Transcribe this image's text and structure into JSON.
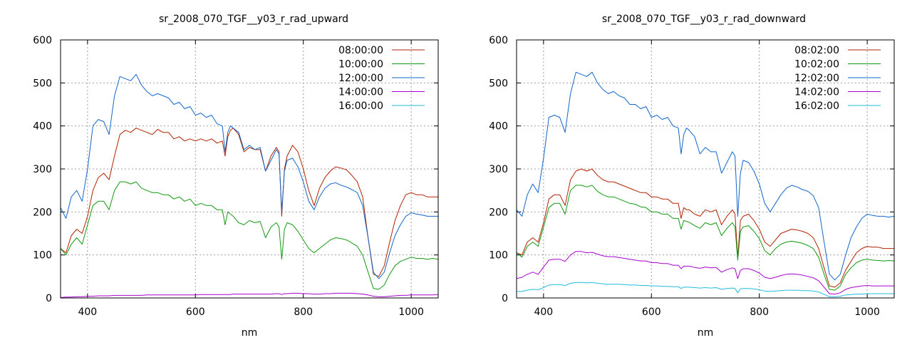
{
  "chart_data": [
    {
      "type": "line",
      "title": "sr_2008_070_TGF__y03_r_rad_upward",
      "xlabel": "nm",
      "ylabel": "",
      "xlim": [
        350,
        1050
      ],
      "ylim": [
        0,
        600
      ],
      "xticks": [
        400,
        600,
        800,
        1000
      ],
      "yticks": [
        0,
        100,
        200,
        300,
        400,
        500,
        600
      ],
      "grid": true,
      "legend": "top-right",
      "x": [
        350,
        360,
        370,
        380,
        390,
        400,
        410,
        420,
        430,
        440,
        450,
        460,
        470,
        480,
        490,
        500,
        510,
        520,
        530,
        540,
        550,
        560,
        570,
        580,
        590,
        600,
        610,
        620,
        630,
        640,
        650,
        655,
        660,
        665,
        670,
        680,
        690,
        700,
        710,
        720,
        730,
        740,
        750,
        755,
        760,
        765,
        770,
        780,
        790,
        800,
        810,
        820,
        830,
        840,
        850,
        860,
        870,
        880,
        890,
        900,
        910,
        920,
        930,
        940,
        950,
        960,
        970,
        980,
        990,
        1000,
        1010,
        1020,
        1030,
        1040,
        1050
      ],
      "series": [
        {
          "name": "08:00:00",
          "color": "#b22200",
          "values": [
            115,
            105,
            145,
            160,
            150,
            190,
            250,
            280,
            290,
            275,
            330,
            380,
            390,
            385,
            395,
            390,
            385,
            380,
            392,
            385,
            385,
            370,
            375,
            365,
            370,
            365,
            370,
            365,
            370,
            360,
            365,
            330,
            375,
            390,
            395,
            380,
            340,
            350,
            345,
            345,
            295,
            330,
            350,
            340,
            190,
            300,
            330,
            355,
            340,
            300,
            250,
            215,
            255,
            280,
            295,
            305,
            302,
            298,
            285,
            270,
            235,
            140,
            55,
            50,
            75,
            130,
            180,
            215,
            240,
            245,
            240,
            240,
            235,
            235,
            235
          ]
        },
        {
          "name": "10:00:00",
          "color": "#119911",
          "values": [
            115,
            100,
            125,
            140,
            125,
            170,
            215,
            225,
            225,
            205,
            250,
            270,
            270,
            265,
            270,
            255,
            250,
            245,
            245,
            240,
            240,
            230,
            235,
            225,
            230,
            215,
            220,
            215,
            215,
            205,
            205,
            170,
            200,
            195,
            190,
            175,
            170,
            180,
            175,
            178,
            140,
            165,
            175,
            165,
            90,
            160,
            175,
            170,
            155,
            135,
            115,
            105,
            115,
            125,
            135,
            140,
            138,
            135,
            128,
            120,
            100,
            60,
            22,
            20,
            30,
            55,
            75,
            85,
            90,
            95,
            92,
            92,
            90,
            92,
            90
          ]
        },
        {
          "name": "12:00:00",
          "color": "#1166cc",
          "values": [
            210,
            185,
            235,
            250,
            225,
            300,
            400,
            415,
            410,
            380,
            470,
            515,
            510,
            505,
            520,
            495,
            480,
            470,
            475,
            470,
            465,
            450,
            455,
            440,
            445,
            425,
            430,
            420,
            425,
            405,
            400,
            340,
            385,
            400,
            395,
            385,
            345,
            355,
            345,
            350,
            295,
            320,
            345,
            335,
            200,
            295,
            320,
            325,
            305,
            270,
            225,
            205,
            235,
            255,
            265,
            268,
            262,
            258,
            252,
            245,
            215,
            140,
            60,
            45,
            60,
            105,
            145,
            170,
            190,
            198,
            195,
            193,
            190,
            190,
            190
          ]
        },
        {
          "name": "14:00:00",
          "color": "#aa00cc",
          "values": [
            1,
            2,
            2,
            3,
            3,
            4,
            4,
            5,
            5,
            5,
            6,
            6,
            6,
            6,
            6,
            6,
            7,
            7,
            7,
            7,
            7,
            7,
            7,
            7,
            7,
            7,
            8,
            8,
            8,
            8,
            8,
            8,
            8,
            8,
            9,
            9,
            9,
            9,
            9,
            9,
            9,
            9,
            10,
            10,
            8,
            10,
            10,
            11,
            11,
            10,
            10,
            9,
            9,
            10,
            10,
            11,
            11,
            11,
            11,
            10,
            9,
            7,
            4,
            3,
            3,
            4,
            5,
            6,
            6,
            7,
            7,
            7,
            7,
            7,
            8
          ]
        },
        {
          "name": "16:00:00",
          "color": "#22bbdd",
          "values": [
            0,
            0,
            0,
            0,
            0,
            0,
            0,
            0,
            0,
            0,
            0,
            0,
            0,
            0,
            0,
            0,
            0,
            0,
            0,
            0,
            0,
            0,
            0,
            0,
            0,
            0,
            0,
            0,
            0,
            0,
            0,
            0,
            0,
            0,
            0,
            0,
            0,
            0,
            0,
            0,
            0,
            0,
            0,
            0,
            0,
            0,
            0,
            0,
            0,
            0,
            0,
            0,
            0,
            0,
            0,
            0,
            0,
            0,
            0,
            0,
            0,
            0,
            0,
            0,
            0,
            0,
            0,
            0,
            0,
            0,
            0,
            0,
            0,
            0,
            0
          ]
        }
      ]
    },
    {
      "type": "line",
      "title": "sr_2008_070_TGF__y03_r_rad_downward",
      "xlabel": "nm",
      "ylabel": "",
      "xlim": [
        350,
        1050
      ],
      "ylim": [
        0,
        600
      ],
      "xticks": [
        400,
        600,
        800,
        1000
      ],
      "yticks": [
        0,
        100,
        200,
        300,
        400,
        500,
        600
      ],
      "grid": true,
      "legend": "top-right",
      "x": [
        350,
        360,
        370,
        380,
        390,
        400,
        410,
        420,
        430,
        440,
        450,
        460,
        470,
        480,
        490,
        500,
        510,
        520,
        530,
        540,
        550,
        560,
        570,
        580,
        590,
        600,
        610,
        620,
        630,
        640,
        650,
        655,
        660,
        665,
        670,
        680,
        690,
        700,
        710,
        720,
        730,
        740,
        750,
        755,
        760,
        765,
        770,
        780,
        790,
        800,
        810,
        820,
        830,
        840,
        850,
        860,
        870,
        880,
        890,
        900,
        910,
        920,
        930,
        940,
        950,
        960,
        970,
        980,
        990,
        1000,
        1010,
        1020,
        1030,
        1040,
        1050
      ],
      "series": [
        {
          "name": "08:02:00",
          "color": "#b22200",
          "values": [
            105,
            100,
            130,
            140,
            130,
            175,
            230,
            240,
            240,
            215,
            275,
            295,
            300,
            295,
            300,
            285,
            275,
            270,
            270,
            265,
            260,
            255,
            250,
            245,
            245,
            235,
            235,
            230,
            230,
            220,
            220,
            185,
            210,
            205,
            205,
            195,
            190,
            205,
            200,
            205,
            170,
            190,
            205,
            195,
            95,
            180,
            190,
            195,
            180,
            160,
            130,
            120,
            135,
            150,
            155,
            160,
            158,
            155,
            150,
            140,
            115,
            70,
            28,
            25,
            35,
            65,
            85,
            105,
            115,
            120,
            118,
            118,
            115,
            115,
            115
          ]
        },
        {
          "name": "10:02:00",
          "color": "#119911",
          "values": [
            105,
            95,
            120,
            130,
            120,
            165,
            210,
            220,
            220,
            195,
            250,
            262,
            262,
            258,
            262,
            248,
            240,
            235,
            235,
            230,
            225,
            220,
            218,
            212,
            210,
            200,
            200,
            195,
            195,
            185,
            185,
            160,
            180,
            178,
            176,
            168,
            162,
            175,
            170,
            175,
            145,
            162,
            175,
            165,
            88,
            155,
            165,
            168,
            155,
            138,
            110,
            100,
            115,
            125,
            130,
            132,
            130,
            127,
            122,
            115,
            95,
            55,
            20,
            18,
            28,
            55,
            70,
            82,
            88,
            90,
            88,
            87,
            86,
            87,
            86
          ]
        },
        {
          "name": "12:02:00",
          "color": "#1166cc",
          "values": [
            205,
            190,
            240,
            265,
            245,
            325,
            420,
            425,
            420,
            385,
            475,
            525,
            520,
            515,
            525,
            500,
            485,
            475,
            480,
            470,
            465,
            450,
            450,
            440,
            445,
            420,
            425,
            415,
            420,
            400,
            395,
            335,
            380,
            395,
            390,
            375,
            335,
            350,
            340,
            340,
            290,
            315,
            340,
            330,
            190,
            290,
            320,
            315,
            295,
            265,
            220,
            200,
            220,
            240,
            255,
            262,
            258,
            252,
            248,
            238,
            210,
            130,
            55,
            42,
            55,
            100,
            140,
            165,
            185,
            195,
            192,
            190,
            190,
            188,
            190
          ]
        },
        {
          "name": "14:02:00",
          "color": "#aa00cc",
          "values": [
            45,
            48,
            55,
            60,
            55,
            72,
            88,
            90,
            90,
            85,
            100,
            108,
            108,
            105,
            106,
            102,
            98,
            96,
            96,
            94,
            92,
            90,
            88,
            86,
            86,
            82,
            82,
            80,
            80,
            76,
            76,
            68,
            74,
            74,
            74,
            71,
            69,
            72,
            70,
            71,
            60,
            66,
            70,
            68,
            45,
            64,
            68,
            68,
            64,
            58,
            48,
            45,
            48,
            52,
            55,
            56,
            55,
            53,
            50,
            47,
            40,
            25,
            10,
            9,
            12,
            20,
            24,
            26,
            28,
            29,
            28,
            28,
            28,
            28,
            28
          ]
        },
        {
          "name": "16:02:00",
          "color": "#22bbdd",
          "values": [
            15,
            15,
            18,
            20,
            19,
            24,
            30,
            31,
            31,
            29,
            34,
            36,
            36,
            35,
            36,
            34,
            33,
            32,
            32,
            32,
            31,
            30,
            30,
            29,
            29,
            28,
            28,
            27,
            27,
            26,
            26,
            22,
            25,
            25,
            25,
            24,
            23,
            24,
            23,
            24,
            20,
            22,
            23,
            22,
            12,
            21,
            22,
            22,
            21,
            19,
            16,
            15,
            16,
            17,
            18,
            18,
            18,
            17,
            17,
            16,
            14,
            8,
            3,
            3,
            4,
            7,
            8,
            9,
            9,
            10,
            10,
            10,
            10,
            10,
            10
          ]
        }
      ]
    }
  ]
}
